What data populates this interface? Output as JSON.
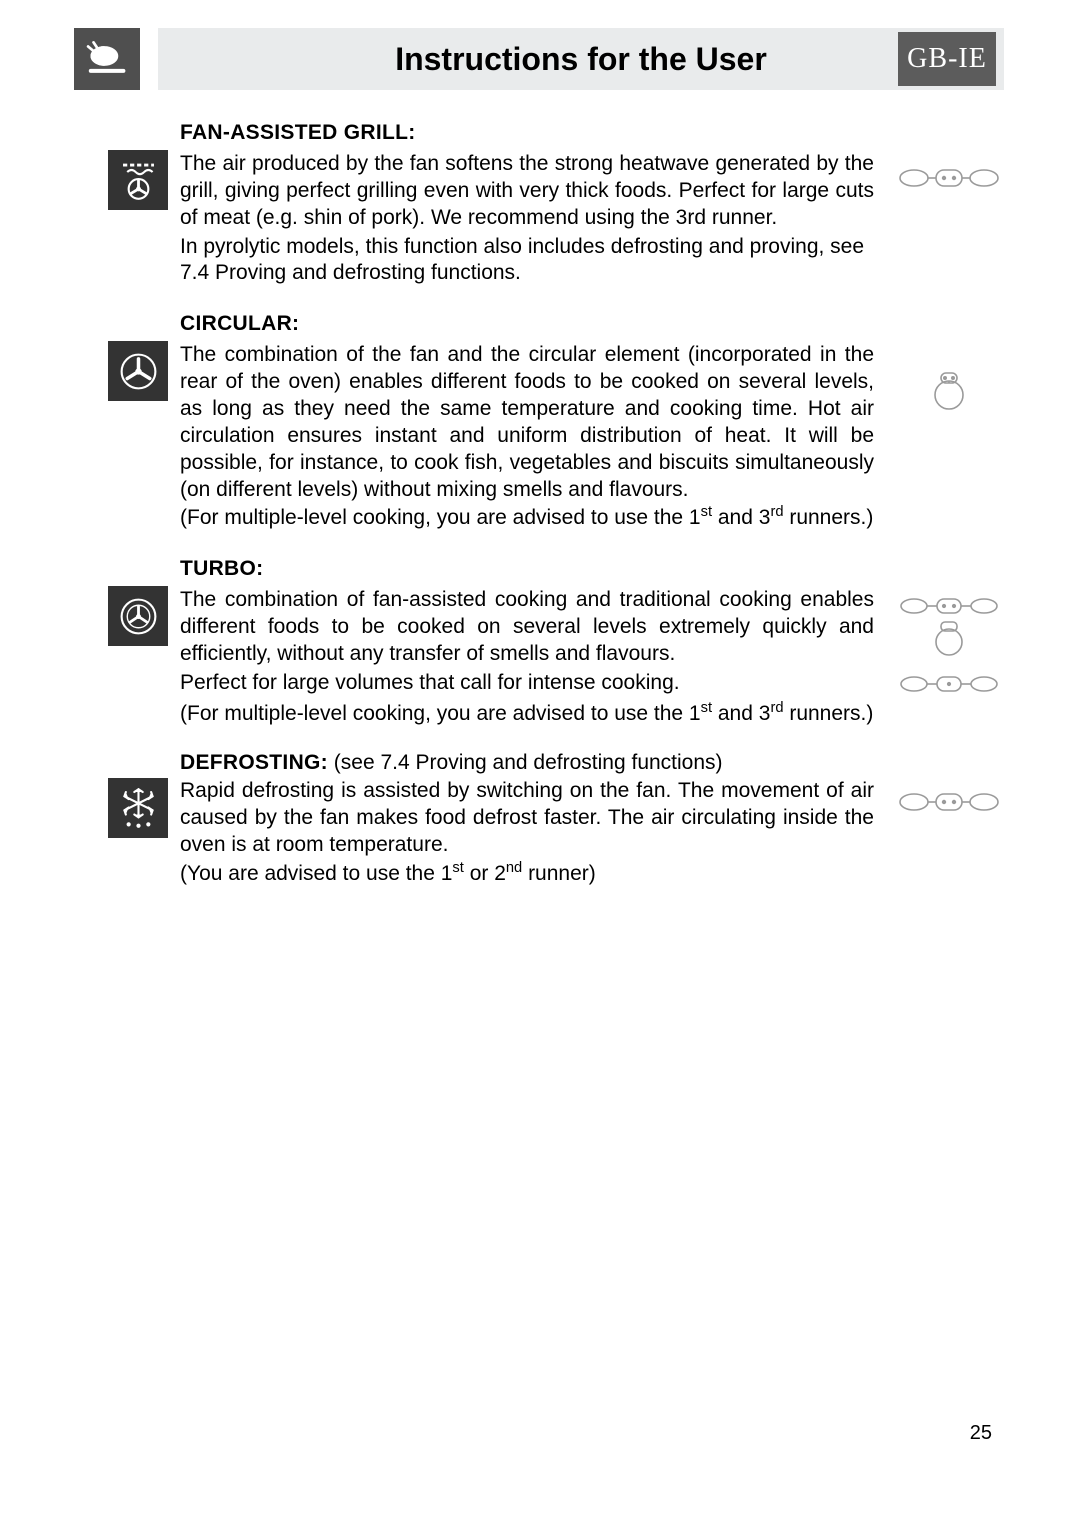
{
  "header": {
    "title": "Instructions for the User",
    "lang_badge": "GB-IE"
  },
  "sections": [
    {
      "key": "fan_grill",
      "title": "FAN-ASSISTED GRILL:",
      "paragraphs": [
        "The air produced by the fan softens the strong heatwave generated by the grill, giving perfect grilling even with very thick foods. Perfect for large cuts of meat (e.g. shin of pork). We recommend using the 3rd runner.",
        "In pyrolytic models, this function also includes defrosting and proving, see 7.4 Proving and defrosting functions."
      ]
    },
    {
      "key": "circular",
      "title": "CIRCULAR:",
      "paragraphs": [
        "The combination of the fan and the circular element (incorporated in the rear of the oven) enables different foods to be cooked on several levels, as long as they need the same temperature and cooking time. Hot air circulation ensures instant and uniform distribution of heat. It will be possible, for instance, to cook fish, vegetables and biscuits simultaneously (on different levels) without mixing smells and flavours."
      ],
      "note_html": "(For multiple-level cooking, you are advised to use the 1<sup>st</sup> and 3<sup>rd</sup> runners.)"
    },
    {
      "key": "turbo",
      "title": "TURBO:",
      "paragraphs": [
        "The combination of fan-assisted cooking and traditional cooking enables different foods to be cooked on several levels extremely quickly and efficiently, without any transfer of smells and flavours.",
        "Perfect for large volumes that call for intense cooking."
      ],
      "note_html": "(For multiple-level cooking, you are advised to use the 1<sup>st</sup> and 3<sup>rd</sup> runners.)"
    },
    {
      "key": "defrosting",
      "title": "DEFROSTING:",
      "title_suffix": " (see 7.4 Proving and defrosting functions)",
      "paragraphs": [
        "Rapid defrosting is assisted by switching on the fan. The movement of air caused by the fan makes food defrost faster. The air circulating inside the oven is at room temperature."
      ],
      "note_html": "(You are advised to use the 1<sup>st</sup> or 2<sup>nd</sup> runner)"
    }
  ],
  "page_number": "25",
  "colors": {
    "header_band": "#e9ebec",
    "icon_bg": "#4f4f4f",
    "badge_bg": "#5c5c5c",
    "text": "#000000",
    "diagram_stroke": "#9a9a9a"
  }
}
